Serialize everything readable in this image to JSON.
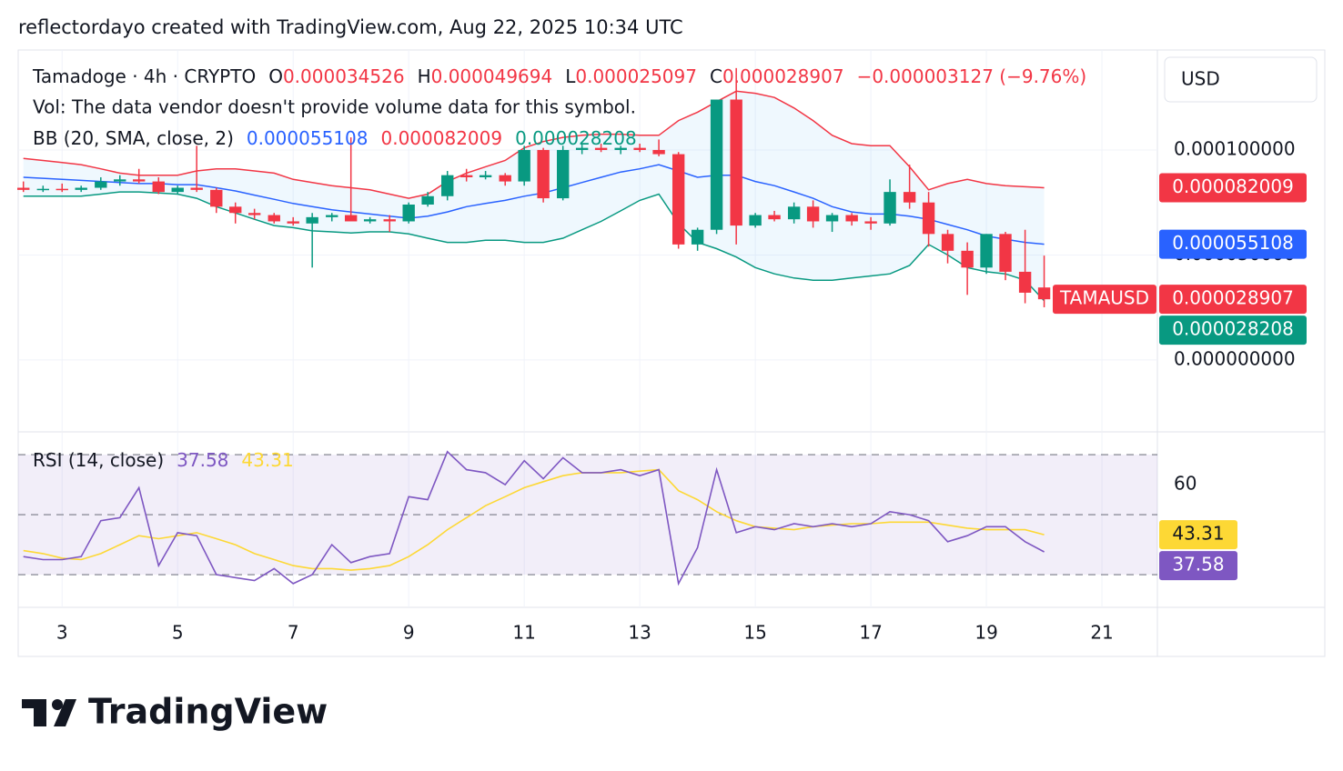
{
  "caption": "reflectordayo created with TradingView.com, Aug 22, 2025 10:34 UTC",
  "brand": "TradingView",
  "chart_data": [
    {
      "type": "candlestick",
      "symbol": "Tamadoge · 4h · CRYPTO",
      "ohlc_labels": [
        "O",
        "H",
        "L",
        "C"
      ],
      "change": "−0.000003127 (−9.76%)",
      "volume_note": "Vol: The data vendor doesn't provide volume data for this symbol.",
      "indicator": "BB (20, SMA, close, 2)",
      "currency": "USD",
      "symbol_tag": "TAMAUSD",
      "up_color": "#089981",
      "down_color": "#f23645",
      "x": [
        2.33,
        2.67,
        3,
        3.33,
        3.67,
        4,
        4.33,
        4.67,
        5,
        5.33,
        5.67,
        6,
        6.33,
        6.67,
        7,
        7.33,
        7.67,
        8,
        8.33,
        8.67,
        9,
        9.33,
        9.67,
        10,
        10.33,
        10.67,
        11,
        11.33,
        11.67,
        12,
        12.33,
        12.67,
        13,
        13.33,
        13.67,
        14,
        14.33,
        14.67,
        15,
        15.33,
        15.67,
        16,
        16.33,
        16.67,
        17,
        17.33,
        17.67,
        18,
        18.33,
        18.67,
        19,
        19.33,
        19.67,
        20
      ],
      "open": [
        8.2e-05,
        8.1e-05,
        8.15e-05,
        8.1e-05,
        8.2e-05,
        8.5e-05,
        8.6e-05,
        8.5e-05,
        8e-05,
        8.2e-05,
        8.1e-05,
        7.3e-05,
        7e-05,
        6.9e-05,
        6.6e-05,
        6.5e-05,
        6.8e-05,
        6.9e-05,
        6.6e-05,
        6.7e-05,
        6.6e-05,
        7.4e-05,
        7.8e-05,
        8.8e-05,
        8.7e-05,
        8.8e-05,
        8.5e-05,
        0.0001,
        7.7e-05,
        0.0001,
        0.000101,
        0.0001,
        0.000101,
        0.0001,
        9.8e-05,
        5.5e-05,
        6.2e-05,
        0.000124,
        6.4e-05,
        6.9e-05,
        6.7e-05,
        7.3e-05,
        6.6e-05,
        6.9e-05,
        6.6e-05,
        6.5e-05,
        8e-05,
        7.5e-05,
        6e-05,
        5.2e-05,
        4.4e-05,
        6e-05,
        4.2e-05,
        3.4526e-05
      ],
      "high": [
        8.5e-05,
        8.3e-05,
        8.4e-05,
        8.3e-05,
        8.7e-05,
        8.8e-05,
        9.1e-05,
        8.7e-05,
        8.3e-05,
        0.000102,
        8.2e-05,
        7.5e-05,
        7.2e-05,
        7e-05,
        6.8e-05,
        7e-05,
        7e-05,
        0.000106,
        6.8e-05,
        6.9e-05,
        7.5e-05,
        8e-05,
        9e-05,
        9.1e-05,
        9e-05,
        8.9e-05,
        0.000102,
        0.000101,
        0.000102,
        0.000103,
        0.000103,
        0.000102,
        0.000103,
        0.000105,
        9.9e-05,
        6.3e-05,
        0.000124,
        0.000139,
        7e-05,
        7.1e-05,
        7.5e-05,
        7.6e-05,
        7e-05,
        7e-05,
        6.8e-05,
        8.6e-05,
        9.3e-05,
        8e-05,
        6.2e-05,
        5.6e-05,
        6e-05,
        6.1e-05,
        6.2e-05,
        4.9694e-05
      ],
      "low": [
        8e-05,
        8e-05,
        8e-05,
        8e-05,
        8.1e-05,
        8.3e-05,
        8.4e-05,
        7.9e-05,
        7.9e-05,
        8e-05,
        7e-05,
        6.5e-05,
        6.7e-05,
        6.5e-05,
        6.4e-05,
        4.4e-05,
        6.6e-05,
        6.6e-05,
        6.5e-05,
        6.1e-05,
        6.5e-05,
        7.3e-05,
        7.6e-05,
        8.5e-05,
        8.6e-05,
        8.3e-05,
        8.3e-05,
        7.5e-05,
        7.6e-05,
        9.8e-05,
        9.9e-05,
        9.8e-05,
        9.9e-05,
        9.7e-05,
        5.3e-05,
        5.2e-05,
        6e-05,
        5.5e-05,
        6.3e-05,
        6.6e-05,
        6.5e-05,
        6.3e-05,
        6.1e-05,
        6.4e-05,
        6.2e-05,
        6.4e-05,
        7.2e-05,
        5.4e-05,
        4.6e-05,
        3.1e-05,
        4.1e-05,
        3.8e-05,
        2.7e-05,
        2.5097e-05
      ],
      "close": [
        8.1e-05,
        8.15e-05,
        8.1e-05,
        8.2e-05,
        8.5e-05,
        8.6e-05,
        8.5e-05,
        8e-05,
        8.2e-05,
        8.1e-05,
        7.3e-05,
        7e-05,
        6.9e-05,
        6.6e-05,
        6.5e-05,
        6.8e-05,
        6.9e-05,
        6.6e-05,
        6.7e-05,
        6.6e-05,
        7.4e-05,
        7.8e-05,
        8.8e-05,
        8.7e-05,
        8.8e-05,
        8.5e-05,
        0.0001,
        7.7e-05,
        0.0001,
        0.000101,
        0.0001,
        0.000101,
        0.0001,
        9.8e-05,
        5.5e-05,
        6.2e-05,
        0.000124,
        6.4e-05,
        6.9e-05,
        6.7e-05,
        7.3e-05,
        6.6e-05,
        6.9e-05,
        6.6e-05,
        6.5e-05,
        8e-05,
        7.5e-05,
        6e-05,
        5.2e-05,
        4.4e-05,
        6e-05,
        4.2e-05,
        3.2034e-05,
        2.8907e-05
      ],
      "series": [
        {
          "color": "#2962ff",
          "values": [
            8.7e-05,
            8.65e-05,
            8.6e-05,
            8.55e-05,
            8.5e-05,
            8.45e-05,
            8.4e-05,
            8.4e-05,
            8.35e-05,
            8.35e-05,
            8.2e-05,
            8.05e-05,
            7.85e-05,
            7.65e-05,
            7.45e-05,
            7.3e-05,
            7.15e-05,
            7.05e-05,
            6.95e-05,
            6.85e-05,
            6.75e-05,
            6.85e-05,
            7.05e-05,
            7.3e-05,
            7.45e-05,
            7.6e-05,
            7.8e-05,
            7.95e-05,
            8.2e-05,
            8.45e-05,
            8.7e-05,
            8.95e-05,
            9.1e-05,
            9.3e-05,
            9e-05,
            8.7e-05,
            8.8e-05,
            8.8e-05,
            8.5e-05,
            8.3e-05,
            8e-05,
            7.7e-05,
            7.3e-05,
            7.05e-05,
            6.95e-05,
            6.95e-05,
            6.85e-05,
            6.7e-05,
            6.45e-05,
            6.2e-05,
            5.9e-05,
            5.75e-05,
            5.6e-05,
            5.5108e-05
          ]
        },
        {
          "color": "#f23645",
          "values": [
            9.6e-05,
            9.5e-05,
            9.4e-05,
            9.3e-05,
            9.1e-05,
            8.9e-05,
            8.8e-05,
            8.8e-05,
            8.8e-05,
            9e-05,
            9.1e-05,
            9.1e-05,
            9e-05,
            8.9e-05,
            8.6e-05,
            8.45e-05,
            8.3e-05,
            8.2e-05,
            8.1e-05,
            7.9e-05,
            7.7e-05,
            7.9e-05,
            8.5e-05,
            8.9e-05,
            9.2e-05,
            9.5e-05,
            0.000101,
            0.000104,
            0.000106,
            0.000107,
            0.0001075,
            0.0001075,
            0.000107,
            0.000107,
            0.000114,
            0.000118,
            0.000123,
            0.000128,
            0.000127,
            0.000125,
            0.00012,
            0.000114,
            0.000107,
            0.000103,
            0.000102,
            0.000102,
            9.2e-05,
            8.1e-05,
            8.4e-05,
            8.6e-05,
            8.4e-05,
            8.3e-05,
            8.25e-05,
            8.2009e-05
          ]
        },
        {
          "color": "#089981",
          "values": [
            7.8e-05,
            7.8e-05,
            7.8e-05,
            7.8e-05,
            7.9e-05,
            8e-05,
            8e-05,
            7.95e-05,
            7.9e-05,
            7.7e-05,
            7.3e-05,
            7e-05,
            6.7e-05,
            6.4e-05,
            6.3e-05,
            6.15e-05,
            6.1e-05,
            6.05e-05,
            6.1e-05,
            6.1e-05,
            6e-05,
            5.8e-05,
            5.6e-05,
            5.6e-05,
            5.7e-05,
            5.7e-05,
            5.6e-05,
            5.6e-05,
            5.8e-05,
            6.2e-05,
            6.6e-05,
            7.1e-05,
            7.6e-05,
            7.9e-05,
            6.5e-05,
            5.6e-05,
            5.3e-05,
            4.9e-05,
            4.4e-05,
            4.1e-05,
            3.9e-05,
            3.8e-05,
            3.8e-05,
            3.9e-05,
            4e-05,
            4.1e-05,
            4.5e-05,
            5.5e-05,
            5e-05,
            4.4e-05,
            4.2e-05,
            4.1e-05,
            3.8e-05,
            2.8208e-05
          ]
        }
      ],
      "ylim": [
        -3.38e-05,
        0.0001476
      ],
      "yticks": [
        {
          "value": 0.0001,
          "label": "0.000100000"
        },
        {
          "value": 5e-05,
          "label": "0.000050000"
        },
        {
          "value": 0,
          "label": "0.000000000"
        }
      ],
      "xlim": [
        2.24,
        21.96
      ],
      "xticks": [
        3,
        5,
        7,
        9,
        11,
        13,
        15,
        17,
        19,
        21
      ],
      "grid": true
    },
    {
      "type": "line",
      "title": "RSI (14, close)",
      "x": [
        2.33,
        2.67,
        3,
        3.33,
        3.67,
        4,
        4.33,
        4.67,
        5,
        5.33,
        5.67,
        6,
        6.33,
        6.67,
        7,
        7.33,
        7.67,
        8,
        8.33,
        8.67,
        9,
        9.33,
        9.67,
        10,
        10.33,
        10.67,
        11,
        11.33,
        11.67,
        12,
        12.33,
        12.67,
        13,
        13.33,
        13.67,
        14,
        14.33,
        14.67,
        15,
        15.33,
        15.67,
        16,
        16.33,
        16.67,
        17,
        17.33,
        17.67,
        18,
        18.33,
        18.67,
        19,
        19.33,
        19.67,
        20
      ],
      "series": [
        {
          "color": "#7e57c2",
          "values": [
            36,
            35,
            35,
            36,
            48,
            49,
            59,
            33,
            44,
            43,
            30,
            29,
            28,
            32,
            27,
            30,
            40,
            34,
            36,
            37,
            56,
            55,
            71,
            65,
            64,
            60,
            68,
            62,
            69,
            64,
            64,
            65,
            63,
            65,
            27,
            39,
            65,
            44,
            46,
            45,
            47,
            46,
            47,
            46,
            47,
            51,
            50,
            48,
            41,
            43,
            46,
            46,
            41,
            37.58
          ]
        },
        {
          "color": "#fdd835",
          "values": [
            38,
            37,
            35.5,
            35,
            37,
            40,
            43,
            42,
            43,
            44,
            42,
            40,
            37,
            35,
            33,
            32,
            32,
            31.5,
            32,
            33,
            36,
            40,
            45,
            49,
            53,
            56,
            59,
            61,
            63,
            64,
            64,
            64,
            64.5,
            65,
            58,
            55,
            51,
            48,
            46,
            45.5,
            45,
            46,
            46.5,
            47,
            47,
            47.5,
            47.5,
            47.5,
            46.5,
            45.5,
            45,
            45,
            45,
            43.31
          ]
        }
      ],
      "ylim": [
        19.1,
        77.3
      ],
      "yticks": [
        60
      ],
      "levels": [
        70,
        50,
        30
      ],
      "band_color": "#7e57c2"
    }
  ]
}
